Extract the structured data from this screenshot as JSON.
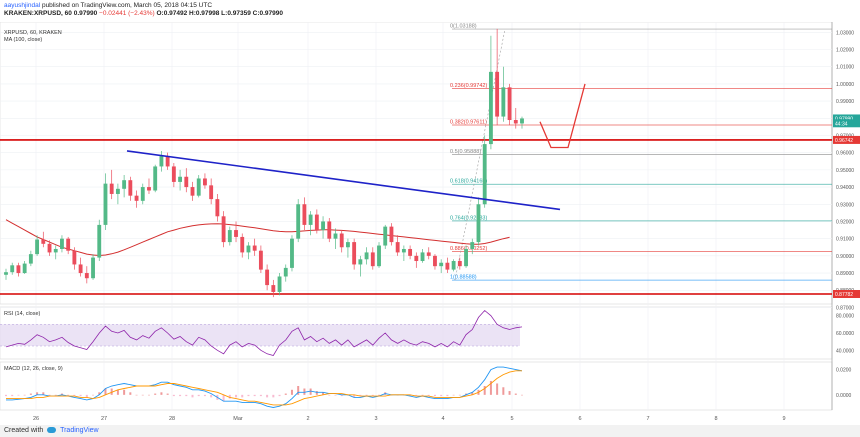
{
  "header": {
    "author": "aayushjindal",
    "published": "published on TradingView.com, March 05, 2018 04:15 UTC",
    "symbol_line": "KRAKEN:XRPUSD, 60",
    "last": "0.97990",
    "change": "−0.02441 (−2.43%)",
    "ohlc": "O:0.97492 H:0.97998 L:0.97359 C:0.97990"
  },
  "footer": {
    "created_with": "Created with",
    "brand": "TradingView"
  },
  "chart_data": {
    "type": "candlestick",
    "symbol": "XRPUSD, 60, KRAKEN",
    "indicator_label": "MA (100, close)",
    "x_tick_labels": [
      "26",
      "27",
      "28",
      "Mar",
      "2",
      "3",
      "4",
      "5",
      "6",
      "7",
      "8",
      "9"
    ],
    "y_tick_labels": [
      "1.03000",
      "1.02000",
      "1.01000",
      "1.00000",
      "0.99000",
      "0.98000",
      "0.97000",
      "0.96000",
      "0.95000",
      "0.94000",
      "0.93000",
      "0.92000",
      "0.91000",
      "0.90000",
      "0.89000",
      "0.88000",
      "0.87000"
    ],
    "ylim": [
      0.872,
      1.036
    ],
    "price_badges": [
      {
        "text": "0.97990",
        "value": 0.9799,
        "color": "#26a69a"
      },
      {
        "text": "44:34",
        "value": 0.9771,
        "color": "#26a69a"
      },
      {
        "text": "0.96742",
        "value": 0.96742,
        "color": "#e53935"
      },
      {
        "text": "0.87782",
        "value": 0.87782,
        "color": "#e53935"
      }
    ],
    "fibonacci": [
      {
        "label": "0(1.03188)",
        "value": 1.03188,
        "color": "#888888"
      },
      {
        "label": "0.236(0.99742)",
        "value": 0.99742,
        "color": "#e53935"
      },
      {
        "label": "0.382(0.97611)",
        "value": 0.97611,
        "color": "#e53935"
      },
      {
        "label": "0.5(0.95888)",
        "value": 0.95888,
        "color": "#888888"
      },
      {
        "label": "0.618(0.94165)",
        "value": 0.94165,
        "color": "#26a69a"
      },
      {
        "label": "0.764(0.92033)",
        "value": 0.92033,
        "color": "#26a69a"
      },
      {
        "label": "0.886(0.90252)",
        "value": 0.90252,
        "color": "#e53935"
      },
      {
        "label": "1(0.88588)",
        "value": 0.88588,
        "color": "#2196f3"
      }
    ],
    "horizontal_lines": [
      0.96742,
      0.87782
    ],
    "candles": [
      [
        0.889,
        0.8925,
        0.886,
        0.8905
      ],
      [
        0.8905,
        0.896,
        0.889,
        0.8945
      ],
      [
        0.8945,
        0.896,
        0.888,
        0.89
      ],
      [
        0.89,
        0.897,
        0.8895,
        0.8955
      ],
      [
        0.8955,
        0.903,
        0.894,
        0.901
      ],
      [
        0.901,
        0.912,
        0.9,
        0.9095
      ],
      [
        0.9095,
        0.914,
        0.905,
        0.907
      ],
      [
        0.907,
        0.909,
        0.9,
        0.902
      ],
      [
        0.902,
        0.906,
        0.898,
        0.904
      ],
      [
        0.904,
        0.912,
        0.902,
        0.91
      ],
      [
        0.91,
        0.911,
        0.901,
        0.903
      ],
      [
        0.903,
        0.905,
        0.892,
        0.895
      ],
      [
        0.895,
        0.899,
        0.888,
        0.89
      ],
      [
        0.89,
        0.894,
        0.884,
        0.887
      ],
      [
        0.887,
        0.901,
        0.886,
        0.899
      ],
      [
        0.899,
        0.921,
        0.897,
        0.918
      ],
      [
        0.918,
        0.948,
        0.915,
        0.942
      ],
      [
        0.942,
        0.95,
        0.933,
        0.936
      ],
      [
        0.936,
        0.942,
        0.93,
        0.939
      ],
      [
        0.939,
        0.947,
        0.934,
        0.944
      ],
      [
        0.944,
        0.946,
        0.932,
        0.935
      ],
      [
        0.935,
        0.938,
        0.928,
        0.932
      ],
      [
        0.932,
        0.942,
        0.93,
        0.94
      ],
      [
        0.94,
        0.945,
        0.936,
        0.938
      ],
      [
        0.938,
        0.953,
        0.937,
        0.952
      ],
      [
        0.952,
        0.961,
        0.949,
        0.958
      ],
      [
        0.958,
        0.96,
        0.95,
        0.952
      ],
      [
        0.952,
        0.954,
        0.94,
        0.943
      ],
      [
        0.943,
        0.95,
        0.938,
        0.946
      ],
      [
        0.946,
        0.951,
        0.937,
        0.94
      ],
      [
        0.94,
        0.943,
        0.932,
        0.935
      ],
      [
        0.935,
        0.947,
        0.934,
        0.945
      ],
      [
        0.945,
        0.948,
        0.939,
        0.941
      ],
      [
        0.941,
        0.945,
        0.93,
        0.933
      ],
      [
        0.933,
        0.936,
        0.92,
        0.923
      ],
      [
        0.923,
        0.926,
        0.905,
        0.908
      ],
      [
        0.908,
        0.917,
        0.906,
        0.915
      ],
      [
        0.915,
        0.92,
        0.908,
        0.911
      ],
      [
        0.911,
        0.913,
        0.899,
        0.902
      ],
      [
        0.902,
        0.908,
        0.898,
        0.906
      ],
      [
        0.906,
        0.91,
        0.9,
        0.903
      ],
      [
        0.903,
        0.906,
        0.89,
        0.892
      ],
      [
        0.892,
        0.895,
        0.88,
        0.883
      ],
      [
        0.883,
        0.886,
        0.876,
        0.879
      ],
      [
        0.879,
        0.89,
        0.877,
        0.888
      ],
      [
        0.888,
        0.895,
        0.885,
        0.893
      ],
      [
        0.893,
        0.912,
        0.891,
        0.91
      ],
      [
        0.91,
        0.933,
        0.908,
        0.93
      ],
      [
        0.93,
        0.934,
        0.915,
        0.918
      ],
      [
        0.918,
        0.926,
        0.912,
        0.924
      ],
      [
        0.924,
        0.927,
        0.913,
        0.915
      ],
      [
        0.915,
        0.923,
        0.91,
        0.92
      ],
      [
        0.92,
        0.922,
        0.908,
        0.91
      ],
      [
        0.91,
        0.916,
        0.904,
        0.913
      ],
      [
        0.913,
        0.915,
        0.902,
        0.905
      ],
      [
        0.905,
        0.91,
        0.899,
        0.908
      ],
      [
        0.908,
        0.91,
        0.892,
        0.895
      ],
      [
        0.895,
        0.9,
        0.888,
        0.898
      ],
      [
        0.898,
        0.905,
        0.895,
        0.902
      ],
      [
        0.902,
        0.905,
        0.892,
        0.894
      ],
      [
        0.894,
        0.908,
        0.893,
        0.906
      ],
      [
        0.906,
        0.918,
        0.904,
        0.917
      ],
      [
        0.917,
        0.919,
        0.906,
        0.908
      ],
      [
        0.908,
        0.912,
        0.9,
        0.902
      ],
      [
        0.902,
        0.906,
        0.897,
        0.904
      ],
      [
        0.904,
        0.906,
        0.898,
        0.9
      ],
      [
        0.9,
        0.902,
        0.893,
        0.897
      ],
      [
        0.897,
        0.904,
        0.896,
        0.902
      ],
      [
        0.902,
        0.905,
        0.898,
        0.9
      ],
      [
        0.9,
        0.901,
        0.892,
        0.894
      ],
      [
        0.894,
        0.898,
        0.89,
        0.896
      ],
      [
        0.896,
        0.899,
        0.89,
        0.892
      ],
      [
        0.892,
        0.898,
        0.891,
        0.897
      ],
      [
        0.897,
        0.899,
        0.892,
        0.894
      ],
      [
        0.894,
        0.906,
        0.893,
        0.904
      ],
      [
        0.904,
        0.91,
        0.901,
        0.908
      ],
      [
        0.908,
        0.934,
        0.906,
        0.93
      ],
      [
        0.93,
        0.97,
        0.928,
        0.965
      ],
      [
        0.965,
        1.028,
        0.962,
        1.007
      ],
      [
        1.007,
        1.032,
        0.976,
        0.981
      ],
      [
        0.981,
        1.01,
        0.978,
        0.998
      ],
      [
        0.998,
        1.0,
        0.976,
        0.979
      ],
      [
        0.979,
        0.986,
        0.974,
        0.977
      ],
      [
        0.977,
        0.981,
        0.974,
        0.9799
      ]
    ],
    "ma": [
      0.921,
      0.919,
      0.917,
      0.915,
      0.913,
      0.911,
      0.9095,
      0.908,
      0.9065,
      0.905,
      0.904,
      0.903,
      0.902,
      0.901,
      0.9005,
      0.9002,
      0.9005,
      0.9012,
      0.9022,
      0.9035,
      0.905,
      0.9065,
      0.908,
      0.9095,
      0.911,
      0.9125,
      0.914,
      0.915,
      0.916,
      0.9168,
      0.9175,
      0.918,
      0.9184,
      0.9186,
      0.9187,
      0.9185,
      0.9182,
      0.9178,
      0.9173,
      0.9168,
      0.9163,
      0.9158,
      0.9152,
      0.9146,
      0.9142,
      0.914,
      0.914,
      0.9142,
      0.9145,
      0.9148,
      0.915,
      0.9152,
      0.9152,
      0.915,
      0.9148,
      0.9145,
      0.9142,
      0.9138,
      0.9134,
      0.913,
      0.9126,
      0.9122,
      0.9118,
      0.9114,
      0.911,
      0.9106,
      0.9102,
      0.9098,
      0.9094,
      0.909,
      0.9086,
      0.9082,
      0.9078,
      0.9074,
      0.907,
      0.9068,
      0.9068,
      0.9072,
      0.908,
      0.909,
      0.91,
      0.9108
    ],
    "trendline": [
      [
        0.961,
        0.929
      ]
    ],
    "rsi": {
      "label": "RSI (14, close)",
      "tick_labels": [
        "80.0000",
        "60.0000",
        "40.0000"
      ],
      "ylim": [
        30,
        90
      ],
      "upper": 70,
      "lower": 30,
      "values": [
        44,
        46,
        48,
        47,
        52,
        58,
        55,
        50,
        52,
        55,
        49,
        45,
        43,
        41,
        50,
        60,
        68,
        62,
        60,
        63,
        55,
        52,
        57,
        54,
        62,
        66,
        60,
        53,
        56,
        50,
        46,
        55,
        52,
        45,
        40,
        36,
        46,
        50,
        44,
        48,
        46,
        40,
        36,
        34,
        46,
        52,
        62,
        66,
        52,
        56,
        50,
        54,
        48,
        52,
        46,
        52,
        44,
        48,
        52,
        46,
        54,
        60,
        52,
        48,
        52,
        48,
        46,
        50,
        48,
        44,
        48,
        44,
        50,
        46,
        58,
        64,
        78,
        86,
        80,
        70,
        66,
        64,
        66,
        67
      ]
    },
    "macd": {
      "label": "MACD (12, 26, close, 9)",
      "tick_labels": [
        "0.0200",
        "0.0000"
      ],
      "ylim": [
        -0.012,
        0.026
      ],
      "macd": [
        -0.004,
        -0.004,
        -0.0035,
        -0.003,
        -0.002,
        0.0,
        0.0,
        -0.001,
        -0.001,
        0.0,
        -0.001,
        -0.002,
        -0.003,
        -0.004,
        -0.003,
        0.0,
        0.005,
        0.007,
        0.008,
        0.009,
        0.008,
        0.007,
        0.007,
        0.007,
        0.008,
        0.01,
        0.01,
        0.008,
        0.007,
        0.006,
        0.004,
        0.004,
        0.003,
        0.001,
        -0.002,
        -0.005,
        -0.005,
        -0.005,
        -0.006,
        -0.006,
        -0.006,
        -0.007,
        -0.009,
        -0.01,
        -0.009,
        -0.007,
        -0.003,
        0.002,
        0.002,
        0.003,
        0.002,
        0.002,
        0.001,
        0.001,
        0.0,
        0.0,
        -0.002,
        -0.002,
        -0.001,
        -0.002,
        -0.001,
        0.001,
        0.0,
        0.0,
        0.0,
        -0.001,
        -0.002,
        -0.001,
        -0.002,
        -0.003,
        -0.003,
        -0.003,
        -0.002,
        -0.002,
        0.0,
        0.002,
        0.006,
        0.012,
        0.02,
        0.022,
        0.022,
        0.021,
        0.02,
        0.019
      ],
      "signal": [
        -0.003,
        -0.003,
        -0.003,
        -0.003,
        -0.003,
        -0.002,
        -0.002,
        -0.001,
        -0.001,
        -0.001,
        -0.001,
        -0.001,
        -0.002,
        -0.002,
        -0.003,
        -0.002,
        0.0,
        0.002,
        0.004,
        0.005,
        0.006,
        0.007,
        0.007,
        0.007,
        0.007,
        0.008,
        0.009,
        0.009,
        0.008,
        0.007,
        0.006,
        0.005,
        0.004,
        0.003,
        0.002,
        0.0,
        -0.002,
        -0.003,
        -0.004,
        -0.005,
        -0.005,
        -0.006,
        -0.007,
        -0.008,
        -0.008,
        -0.008,
        -0.007,
        -0.005,
        -0.003,
        -0.002,
        -0.001,
        0.0,
        0.001,
        0.001,
        0.001,
        0.0,
        0.0,
        -0.001,
        -0.001,
        -0.001,
        -0.001,
        -0.001,
        0.0,
        0.0,
        0.0,
        0.0,
        -0.001,
        -0.001,
        -0.001,
        -0.002,
        -0.002,
        -0.002,
        -0.002,
        -0.002,
        -0.001,
        0.0,
        0.002,
        0.005,
        0.009,
        0.013,
        0.016,
        0.018,
        0.019,
        0.019
      ]
    },
    "timestamp_badge": "44:34"
  }
}
